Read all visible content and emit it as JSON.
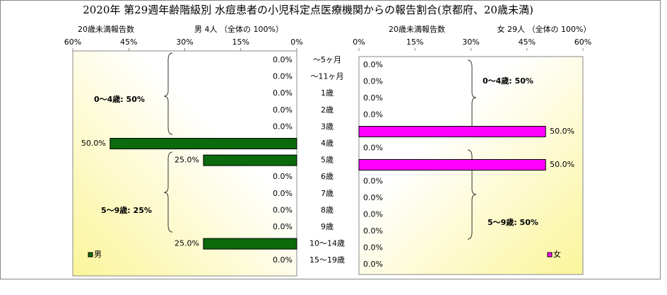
{
  "title": "2020年 第29週年齢階級別 水痘患者の小児科定点医療機関からの報告割合(京都府、20歳未満)",
  "chart_data": [
    {
      "type": "bar",
      "orientation": "horizontal",
      "header_label": "20歳未満報告数",
      "header": "男  4人 （全体の  100%）",
      "categories": [
        "〜5ヶ月",
        "〜11ヶ月",
        "1歳",
        "2歳",
        "3歳",
        "4歳",
        "5歳",
        "6歳",
        "7歳",
        "8歳",
        "9歳",
        "10〜14歳",
        "15〜19歳"
      ],
      "series": [
        {
          "name": "男",
          "color": "#0b6a0b",
          "values": [
            0,
            0,
            0,
            0,
            0,
            50,
            25,
            0,
            0,
            0,
            0,
            25,
            0
          ],
          "value_labels": [
            "0.0%",
            "0.0%",
            "0.0%",
            "0.0%",
            "0.0%",
            "50.0%",
            "25.0%",
            "0.0%",
            "0.0%",
            "0.0%",
            "0.0%",
            "25.0%",
            "0.0%"
          ]
        }
      ],
      "xlim": [
        60,
        0
      ],
      "xticks": [
        {
          "value": 60,
          "label": "60%"
        },
        {
          "value": 45,
          "label": "45%"
        },
        {
          "value": 30,
          "label": "30%"
        },
        {
          "value": 15,
          "label": "15%"
        },
        {
          "value": 0,
          "label": "0%"
        }
      ],
      "annotations": [
        "0〜4歳: 50%",
        "5〜9歳: 25%"
      ],
      "legend": "bottom-left"
    },
    {
      "type": "bar",
      "orientation": "horizontal",
      "header_label": "20歳未満報告数",
      "header": "女  29人 （全体の  100%）",
      "series": [
        {
          "name": "女",
          "color": "#ff00ff",
          "values": [
            0,
            0,
            0,
            0,
            50,
            0,
            50,
            0,
            0,
            0,
            0,
            0,
            0
          ],
          "value_labels": [
            "0.0%",
            "0.0%",
            "0.0%",
            "0.0%",
            "50.0%",
            "0.0%",
            "50.0%",
            "0.0%",
            "0.0%",
            "0.0%",
            "0.0%",
            "0.0%",
            "0.0%"
          ]
        }
      ],
      "xlim": [
        0,
        60
      ],
      "xticks": [
        {
          "value": 0,
          "label": "0%"
        },
        {
          "value": 15,
          "label": "15%"
        },
        {
          "value": 30,
          "label": "30%"
        },
        {
          "value": 45,
          "label": "45%"
        },
        {
          "value": 60,
          "label": "60%"
        }
      ],
      "annotations": [
        "0〜4歳: 50%",
        "5〜9歳: 50%"
      ],
      "legend": "bottom-right"
    }
  ]
}
